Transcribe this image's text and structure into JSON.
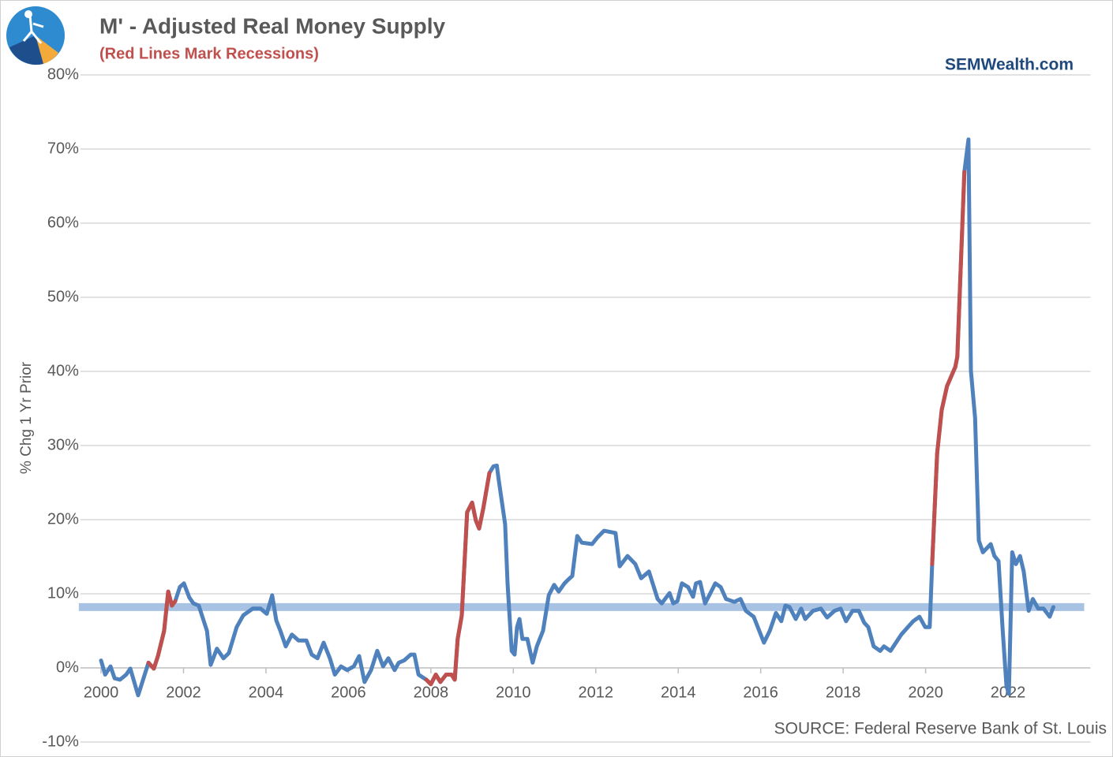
{
  "chart_data": {
    "type": "line",
    "title": "M' - Adjusted Real Money Supply",
    "subtitle": "(Red Lines Mark Recessions)",
    "brand": "SEMWealth.com",
    "source": "SOURCE:  Federal Reserve Bank of St. Louis",
    "y_label": "% Chg 1 Yr Prior",
    "xlim": [
      1999.5,
      2024
    ],
    "xticks": [
      2000,
      2002,
      2004,
      2006,
      2008,
      2010,
      2012,
      2014,
      2016,
      2018,
      2020,
      2022
    ],
    "ylim": [
      -10,
      80
    ],
    "yticks": [
      {
        "value": -10,
        "label": "-10%"
      },
      {
        "value": 0,
        "label": "0%"
      },
      {
        "value": 10,
        "label": "10%"
      },
      {
        "value": 20,
        "label": "20%"
      },
      {
        "value": 30,
        "label": "30%"
      },
      {
        "value": 40,
        "label": "40%"
      },
      {
        "value": 50,
        "label": "50%"
      },
      {
        "value": 60,
        "label": "60%"
      },
      {
        "value": 70,
        "label": "70%"
      },
      {
        "value": 80,
        "label": "80%"
      }
    ],
    "grid": true,
    "reference_line": {
      "value": 8.2,
      "color": "#a7c2e2"
    },
    "series": [
      {
        "color": "#4f81bd",
        "x": [
          2000,
          2000.1,
          2000.23,
          2000.33,
          2000.46,
          2000.61,
          2000.71,
          2000.9,
          2001.03,
          2001.15,
          2001.28,
          2001.38,
          2001.53,
          2001.63,
          2001.72,
          2001.8,
          2001.91,
          2002.01,
          2002.14,
          2002.24,
          2002.37,
          2002.57,
          2002.66,
          2002.81,
          2002.97,
          2003.1,
          2003.29,
          2003.45,
          2003.68,
          2003.87,
          2004.02,
          2004.15,
          2004.25,
          2004.35,
          2004.48,
          2004.63,
          2004.79,
          2004.98,
          2005.11,
          2005.25,
          2005.4,
          2005.55,
          2005.67,
          2005.82,
          2005.97,
          2006.13,
          2006.26,
          2006.39,
          2006.55,
          2006.7,
          2006.84,
          2006.97,
          2007.12,
          2007.22,
          2007.35,
          2007.51,
          2007.6,
          2007.7,
          2007.89,
          2008.0,
          2008.12,
          2008.23,
          2008.37,
          2008.5,
          2008.58,
          2008.65,
          2008.75,
          2008.88,
          2009.0,
          2009.09,
          2009.17,
          2009.27,
          2009.42,
          2009.52,
          2009.6,
          2009.65,
          2009.8,
          2009.86,
          2009.96,
          2010.03,
          2010.09,
          2010.15,
          2010.22,
          2010.34,
          2010.47,
          2010.57,
          2010.72,
          2010.86,
          2010.99,
          2011.1,
          2011.24,
          2011.33,
          2011.43,
          2011.55,
          2011.66,
          2011.91,
          2012.04,
          2012.2,
          2012.48,
          2012.58,
          2012.77,
          2012.96,
          2013.1,
          2013.29,
          2013.5,
          2013.6,
          2013.79,
          2013.88,
          2013.98,
          2014.09,
          2014.24,
          2014.36,
          2014.43,
          2014.53,
          2014.65,
          2014.78,
          2014.9,
          2015.03,
          2015.16,
          2015.36,
          2015.51,
          2015.64,
          2015.83,
          2016.08,
          2016.22,
          2016.37,
          2016.5,
          2016.6,
          2016.7,
          2016.85,
          2016.98,
          2017.08,
          2017.27,
          2017.46,
          2017.61,
          2017.79,
          2017.94,
          2018.07,
          2018.23,
          2018.38,
          2018.51,
          2018.61,
          2018.74,
          2018.9,
          2018.99,
          2019.15,
          2019.28,
          2019.41,
          2019.57,
          2019.7,
          2019.85,
          2019.99,
          2020.1,
          2020.16,
          2020.28,
          2020.39,
          2020.52,
          2020.72,
          2020.77,
          2020.94,
          2021.04,
          2021.1,
          2021.2,
          2021.29,
          2021.39,
          2021.58,
          2021.67,
          2021.77,
          2021.87,
          2021.96,
          2022.02,
          2022.1,
          2022.19,
          2022.29,
          2022.38,
          2022.5,
          2022.6,
          2022.73,
          2022.86,
          2023.01,
          2023.1
        ],
        "values": [
          1,
          -0.9,
          0.2,
          -1.4,
          -1.6,
          -0.9,
          -0.1,
          -3.7,
          -1.4,
          0.7,
          -0.1,
          1.6,
          5,
          10.3,
          8.4,
          9,
          10.9,
          11.4,
          9.5,
          8.7,
          8.4,
          5,
          0.4,
          2.6,
          1.3,
          2,
          5.5,
          7.1,
          8,
          8,
          7.3,
          9.8,
          6.4,
          5,
          2.9,
          4.5,
          3.7,
          3.7,
          1.8,
          1.3,
          3.4,
          1.3,
          -0.9,
          0.2,
          -0.3,
          0.2,
          1.6,
          -1.9,
          -0.3,
          2.3,
          0.2,
          1.3,
          -0.3,
          0.7,
          1,
          1.8,
          1.8,
          -0.9,
          -1.6,
          -2.2,
          -0.9,
          -1.9,
          -0.9,
          -0.9,
          -1.6,
          3.9,
          7.1,
          21,
          22.3,
          19.9,
          18.8,
          21.5,
          26.3,
          27.2,
          27.3,
          25.2,
          19.4,
          11.4,
          2.3,
          1.8,
          5.5,
          6.6,
          3.9,
          3.9,
          0.7,
          2.9,
          5,
          9.8,
          11.2,
          10.3,
          11.4,
          11.9,
          12.4,
          17.8,
          16.9,
          16.7,
          17.6,
          18.5,
          18.2,
          13.7,
          15.1,
          14,
          12.1,
          13,
          9.3,
          8.7,
          10.1,
          8.7,
          9,
          11.4,
          10.9,
          9.6,
          11.4,
          11.6,
          8.7,
          10.1,
          11.4,
          10.9,
          9.3,
          8.9,
          9.3,
          7.7,
          6.9,
          3.4,
          5,
          7.4,
          6.3,
          8.4,
          8.2,
          6.6,
          8,
          6.6,
          7.7,
          8,
          6.8,
          7.7,
          8,
          6.3,
          7.7,
          7.7,
          6.1,
          5.5,
          2.9,
          2.3,
          2.9,
          2.3,
          3.4,
          4.5,
          5.5,
          6.3,
          6.9,
          5.5,
          5.5,
          14,
          28.9,
          34.8,
          38,
          40.6,
          42,
          66.9,
          71.3,
          40.1,
          33.7,
          17.2,
          15.6,
          16.7,
          15.1,
          14.4,
          5,
          -2.4,
          -3.5,
          15.6,
          14,
          15.1,
          13,
          7.7,
          9.3,
          8,
          8,
          6.9,
          8.2
        ]
      },
      {
        "color": "#c0504d",
        "x": [
          2001.15,
          2001.28,
          2001.38,
          2001.53,
          2001.63,
          2001.72,
          2001.8,
          null,
          2007.89,
          2008.0,
          2008.12,
          2008.23,
          2008.37,
          2008.5,
          2008.58,
          2008.65,
          2008.75,
          2008.88,
          2009.0,
          2009.09,
          2009.17,
          2009.27,
          2009.42,
          null,
          2020.16,
          2020.28,
          2020.39,
          2020.52,
          2020.72,
          2020.77,
          2020.94
        ],
        "values": [
          0.7,
          -0.1,
          1.6,
          5,
          10.3,
          8.4,
          9,
          null,
          -1.6,
          -2.2,
          -0.9,
          -1.9,
          -0.9,
          -0.9,
          -1.6,
          3.9,
          7.1,
          21,
          22.3,
          19.9,
          18.8,
          21.5,
          26.3,
          null,
          14,
          28.9,
          34.8,
          38,
          40.6,
          42,
          66.9
        ]
      }
    ]
  }
}
